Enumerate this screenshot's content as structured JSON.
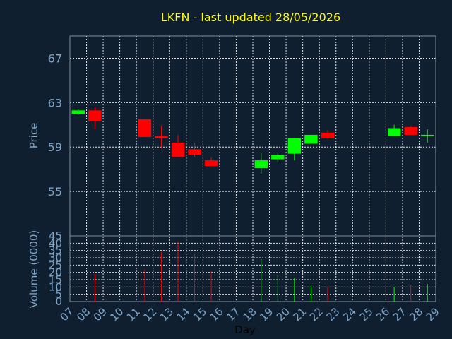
{
  "chart_data": {
    "type": "candlestick",
    "title": "LKFN - last updated 28/05/2026",
    "ylabel": "Price",
    "volume_label": "Volume (0000)",
    "xlabel": "Day",
    "colors": {
      "background": "#0f1f30",
      "up": "#00ff00",
      "down": "#ff0000",
      "title": "#ffff00",
      "tick": "#7fa6c8"
    },
    "price_ylim": [
      51,
      69
    ],
    "price_ticks": [
      "67",
      "63",
      "59",
      "55"
    ],
    "volume_ylim": [
      0,
      45
    ],
    "volume_ticks": [
      "0",
      "5",
      "10",
      "15",
      "20",
      "25",
      "30",
      "35",
      "40",
      "45"
    ],
    "x_tick_labels": [
      "07",
      "08",
      "09",
      "10",
      "11",
      "12",
      "13",
      "14",
      "15",
      "16",
      "17",
      "18",
      "19",
      "20",
      "21",
      "22",
      "23",
      "24",
      "25",
      "26",
      "27",
      "28",
      "29"
    ],
    "candles": [
      {
        "day": "07",
        "open": 62.0,
        "close": 62.3,
        "high": 62.4,
        "low": 61.9,
        "volume": 0
      },
      {
        "day": "08",
        "open": 62.3,
        "close": 61.3,
        "high": 62.6,
        "low": 60.6,
        "volume": 19
      },
      {
        "day": "11",
        "open": 61.5,
        "close": 59.9,
        "high": 61.5,
        "low": 59.9,
        "volume": 22
      },
      {
        "day": "12",
        "open": 60.0,
        "close": 59.8,
        "high": 60.9,
        "low": 58.9,
        "volume": 34
      },
      {
        "day": "13",
        "open": 59.4,
        "close": 58.1,
        "high": 60.1,
        "low": 58.1,
        "volume": 41
      },
      {
        "day": "14",
        "open": 58.8,
        "close": 58.3,
        "high": 59.4,
        "low": 58.1,
        "volume": 33
      },
      {
        "day": "15",
        "open": 57.8,
        "close": 57.3,
        "high": 58.1,
        "low": 57.3,
        "volume": 21
      },
      {
        "day": "18",
        "open": 57.1,
        "close": 57.8,
        "high": 58.5,
        "low": 56.6,
        "volume": 29
      },
      {
        "day": "19",
        "open": 57.9,
        "close": 58.3,
        "high": 58.4,
        "low": 57.6,
        "volume": 18
      },
      {
        "day": "20",
        "open": 58.4,
        "close": 59.8,
        "high": 59.8,
        "low": 57.8,
        "volume": 16
      },
      {
        "day": "21",
        "open": 59.3,
        "close": 60.1,
        "high": 60.1,
        "low": 59.3,
        "volume": 11
      },
      {
        "day": "22",
        "open": 60.3,
        "close": 59.8,
        "high": 60.5,
        "low": 59.7,
        "volume": 10
      },
      {
        "day": "26",
        "open": 60.0,
        "close": 60.7,
        "high": 61.0,
        "low": 60.0,
        "volume": 10
      },
      {
        "day": "27",
        "open": 60.8,
        "close": 60.1,
        "high": 60.9,
        "low": 60.1,
        "volume": 11
      },
      {
        "day": "28",
        "open": 60.0,
        "close": 60.1,
        "high": 60.6,
        "low": 59.4,
        "volume": 12
      }
    ]
  }
}
